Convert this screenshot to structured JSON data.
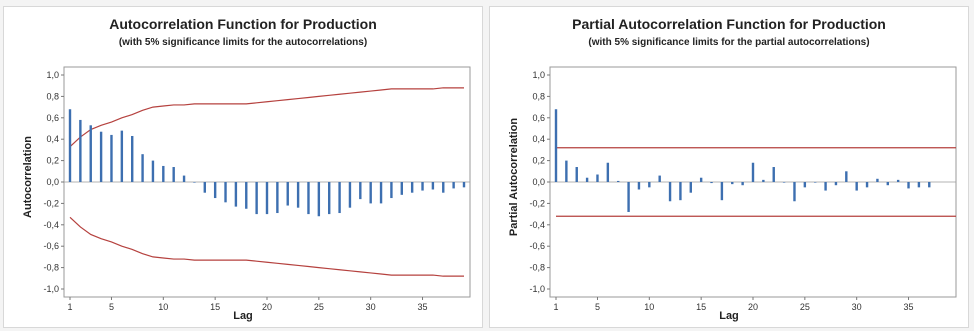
{
  "chart_data": [
    {
      "type": "bar",
      "title": "Autocorrelation Function for Production",
      "subtitle": "(with 5% significance limits for the autocorrelations)",
      "xlabel": "Lag",
      "ylabel": "Autocorrelation",
      "xlim": [
        1,
        39
      ],
      "ylim": [
        -1.0,
        1.0
      ],
      "x_ticks": [
        1,
        5,
        10,
        15,
        20,
        25,
        30,
        35
      ],
      "y_ticks": [
        "1,0",
        "0,8",
        "0,6",
        "0,4",
        "0,2",
        "0,0",
        "-0,2",
        "-0,4",
        "-0,6",
        "-0,8",
        "-1,0"
      ],
      "grid": false,
      "colors": {
        "bars": "#3d6fb0",
        "limits": "#b5413e"
      },
      "lags": [
        1,
        2,
        3,
        4,
        5,
        6,
        7,
        8,
        9,
        10,
        11,
        12,
        13,
        14,
        15,
        16,
        17,
        18,
        19,
        20,
        21,
        22,
        23,
        24,
        25,
        26,
        27,
        28,
        29,
        30,
        31,
        32,
        33,
        34,
        35,
        36,
        37,
        38,
        39
      ],
      "values": [
        0.68,
        0.58,
        0.53,
        0.47,
        0.44,
        0.48,
        0.43,
        0.26,
        0.2,
        0.15,
        0.14,
        0.06,
        0.0,
        -0.1,
        -0.15,
        -0.19,
        -0.23,
        -0.25,
        -0.3,
        -0.3,
        -0.29,
        -0.22,
        -0.24,
        -0.3,
        -0.32,
        -0.3,
        -0.29,
        -0.24,
        -0.16,
        -0.2,
        -0.2,
        -0.15,
        -0.12,
        -0.1,
        -0.08,
        -0.07,
        -0.1,
        -0.06,
        -0.05
      ],
      "upper_limit": [
        0.33,
        0.42,
        0.49,
        0.53,
        0.56,
        0.6,
        0.63,
        0.67,
        0.7,
        0.71,
        0.72,
        0.72,
        0.73,
        0.73,
        0.73,
        0.73,
        0.73,
        0.73,
        0.74,
        0.75,
        0.76,
        0.77,
        0.78,
        0.79,
        0.8,
        0.81,
        0.82,
        0.83,
        0.84,
        0.85,
        0.86,
        0.87,
        0.87,
        0.87,
        0.87,
        0.87,
        0.88,
        0.88,
        0.88
      ],
      "lower_limit": [
        -0.33,
        -0.42,
        -0.49,
        -0.53,
        -0.56,
        -0.6,
        -0.63,
        -0.67,
        -0.7,
        -0.71,
        -0.72,
        -0.72,
        -0.73,
        -0.73,
        -0.73,
        -0.73,
        -0.73,
        -0.73,
        -0.74,
        -0.75,
        -0.76,
        -0.77,
        -0.78,
        -0.79,
        -0.8,
        -0.81,
        -0.82,
        -0.83,
        -0.84,
        -0.85,
        -0.86,
        -0.87,
        -0.87,
        -0.87,
        -0.87,
        -0.87,
        -0.88,
        -0.88,
        -0.88
      ]
    },
    {
      "type": "bar",
      "title": "Partial Autocorrelation Function for Production",
      "subtitle": "(with 5% significance limits for the partial autocorrelations)",
      "xlabel": "Lag",
      "ylabel": "Partial Autocorrelation",
      "xlim": [
        1,
        39
      ],
      "ylim": [
        -1.0,
        1.0
      ],
      "x_ticks": [
        1,
        5,
        10,
        15,
        20,
        25,
        30,
        35
      ],
      "y_ticks": [
        "1,0",
        "0,8",
        "0,6",
        "0,4",
        "0,2",
        "0,0",
        "-0,2",
        "-0,4",
        "-0,6",
        "-0,8",
        "-1,0"
      ],
      "grid": false,
      "colors": {
        "bars": "#3d6fb0",
        "limits": "#b5413e"
      },
      "lags": [
        1,
        2,
        3,
        4,
        5,
        6,
        7,
        8,
        9,
        10,
        11,
        12,
        13,
        14,
        15,
        16,
        17,
        18,
        19,
        20,
        21,
        22,
        23,
        24,
        25,
        26,
        27,
        28,
        29,
        30,
        31,
        32,
        33,
        34,
        35,
        36,
        37
      ],
      "values": [
        0.68,
        0.2,
        0.14,
        0.04,
        0.07,
        0.18,
        0.01,
        -0.28,
        -0.07,
        -0.05,
        0.06,
        -0.18,
        -0.17,
        -0.1,
        0.04,
        -0.01,
        -0.17,
        -0.02,
        -0.03,
        0.18,
        0.02,
        0.14,
        0.0,
        -0.18,
        -0.05,
        0.0,
        -0.08,
        -0.03,
        0.1,
        -0.08,
        -0.05,
        0.03,
        -0.03,
        0.02,
        -0.06,
        -0.05,
        -0.05
      ],
      "upper_limit": [
        0.32
      ],
      "lower_limit": [
        -0.32
      ]
    }
  ]
}
